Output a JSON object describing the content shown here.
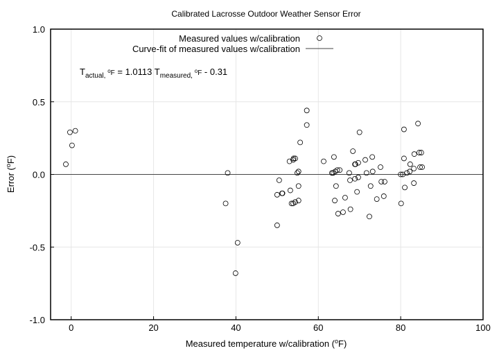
{
  "chart_data": {
    "type": "scatter",
    "title": "Calibrated Lacrosse Outdoor Weather Sensor Error",
    "xlabel": "Measured temperature w/calibration (",
    "xlabel_sup": "o",
    "xlabel_tail": "F)",
    "ylabel": "Error (",
    "ylabel_sup": "o",
    "ylabel_tail": "F)",
    "xlim": [
      -5,
      100
    ],
    "ylim": [
      -1.0,
      1.0
    ],
    "xticks": [
      0,
      20,
      40,
      60,
      80,
      100
    ],
    "yticks": [
      -1.0,
      -0.5,
      0.0,
      0.5,
      1.0
    ],
    "ytick_labels": [
      "-1.0",
      "-0.5",
      "0.0",
      "0.5",
      "1.0"
    ],
    "grid": true,
    "legend_position": "top-right",
    "legend": [
      {
        "label": "Measured values w/calibration",
        "marker": "circle"
      },
      {
        "label": "Curve-fit of measured values w/calibration",
        "marker": "line"
      }
    ],
    "annotation": {
      "t1": "T",
      "s1": "actual, ",
      "sup1": "o",
      "s1b": "F",
      "mid": " = 1.0113 T",
      "s2": "measured, ",
      "sup2": "o",
      "s2b": "F",
      "tail": " - 0.31"
    },
    "fit_line": {
      "x": [
        -5,
        100
      ],
      "y": [
        0,
        0
      ]
    },
    "series": [
      {
        "name": "Measured values w/calibration",
        "x": [
          -1.3,
          -0.3,
          0.2,
          1.0,
          37.5,
          38.0,
          39.9,
          40.4,
          50.0,
          50.5,
          50.0,
          51.2,
          51.3,
          53.2,
          53.0,
          53.9,
          54.0,
          54.4,
          54.9,
          55.2,
          55.2,
          53.5,
          53.9,
          54.4,
          55.2,
          55.6,
          57.2,
          57.2,
          61.3,
          63.8,
          63.3,
          63.6,
          64.1,
          64.6,
          65.2,
          64.3,
          64.0,
          64.8,
          66.0,
          66.5,
          67.8,
          68.4,
          70.0,
          68.9,
          69.0,
          69.7,
          67.5,
          67.7,
          68.9,
          69.7,
          69.4,
          71.4,
          73.1,
          71.7,
          73.2,
          72.7,
          72.4,
          74.2,
          75.1,
          75.3,
          76.1,
          75.9,
          80.8,
          84.2,
          80.8,
          82.3,
          83.3,
          84.5,
          85.0,
          80.0,
          80.5,
          81.5,
          82.2,
          83.2,
          84.7,
          85.2,
          81.0,
          83.2,
          80.1
        ],
        "y": [
          0.07,
          0.29,
          0.2,
          0.3,
          -0.2,
          0.01,
          -0.68,
          -0.47,
          -0.35,
          -0.04,
          -0.14,
          -0.13,
          -0.13,
          -0.11,
          0.09,
          0.1,
          0.11,
          0.11,
          0.01,
          0.02,
          -0.08,
          -0.2,
          -0.2,
          -0.19,
          -0.18,
          0.22,
          0.34,
          0.44,
          0.09,
          0.12,
          0.01,
          0.01,
          0.02,
          0.03,
          0.03,
          -0.08,
          -0.18,
          -0.27,
          -0.26,
          -0.16,
          -0.24,
          0.16,
          0.29,
          0.07,
          0.07,
          0.08,
          0.01,
          -0.04,
          -0.03,
          -0.02,
          -0.12,
          0.1,
          0.12,
          0.01,
          0.02,
          -0.08,
          -0.29,
          -0.17,
          0.05,
          -0.05,
          -0.05,
          -0.15,
          0.31,
          0.35,
          0.11,
          0.07,
          0.14,
          0.15,
          0.15,
          0.0,
          0.0,
          0.01,
          0.02,
          0.04,
          0.05,
          0.05,
          -0.09,
          -0.06,
          -0.2
        ]
      }
    ]
  }
}
